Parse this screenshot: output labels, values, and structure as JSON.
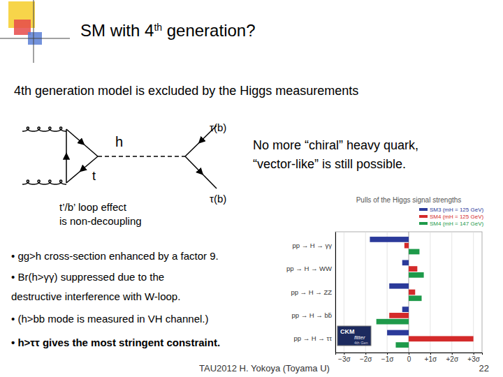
{
  "slide": {
    "title": [
      "SM with 4",
      "th",
      " generation?"
    ],
    "subtitle": "4th generation model is excluded by the Higgs measurements",
    "diagram_labels": [
      "h",
      "t",
      "τ(b)",
      "τ(b)"
    ],
    "note": [
      "t’/b’ loop effect",
      "is non-decoupling"
    ],
    "remark": [
      "No more “chiral” heavy quark,",
      "“vector-like” is still possible."
    ],
    "bullets": [
      [
        "• gg>h cross-section enhanced by a factor 9."
      ],
      [
        "• Br(h>γγ) suppressed due to the",
        "destructive interference with W-loop."
      ],
      [
        "• (h>bb mode is measured in VH channel.)"
      ],
      [
        "• h>ττ gives the most stringent constraint."
      ]
    ],
    "logo": [
      "CKM",
      "fitter",
      "4th Gen"
    ],
    "footer": "TAU2012 H. Yokoya (Toyama U)",
    "page": "22"
  },
  "chart_data": {
    "type": "bar",
    "orientation": "horizontal",
    "title": "Pulls of the Higgs signal strengths",
    "categories": [
      "pp → H → γγ",
      "pp → H → WW",
      "pp → H → ZZ",
      "pp → H → bb̄",
      "pp → H → ττ"
    ],
    "series": [
      {
        "name": "SM3 (mH = 125 GeV)",
        "color": "#2b3a9a",
        "values": [
          -1.8,
          -0.3,
          -0.9,
          -0.3,
          -1.0
        ]
      },
      {
        "name": "SM4 (mH = 125 GeV)",
        "color": "#d42a2a",
        "values": [
          -0.2,
          0.4,
          0.3,
          -0.9,
          3.0
        ]
      },
      {
        "name": "SM4 (mH = 147 GeV)",
        "color": "#1e9a4a",
        "values": [
          0.5,
          0.7,
          0.6,
          -1.5,
          -0.6
        ]
      }
    ],
    "xlim": [
      -3.4,
      3.4
    ],
    "xticks": [
      {
        "value": -3,
        "label": "−3σ"
      },
      {
        "value": -2,
        "label": "−2σ"
      },
      {
        "value": -1,
        "label": "−1σ"
      },
      0,
      {
        "value": 1,
        "label": "+1σ"
      },
      {
        "value": 2,
        "label": "+2σ"
      },
      {
        "value": 3,
        "label": "+3σ"
      }
    ],
    "grid": true,
    "legend": "upper right"
  }
}
